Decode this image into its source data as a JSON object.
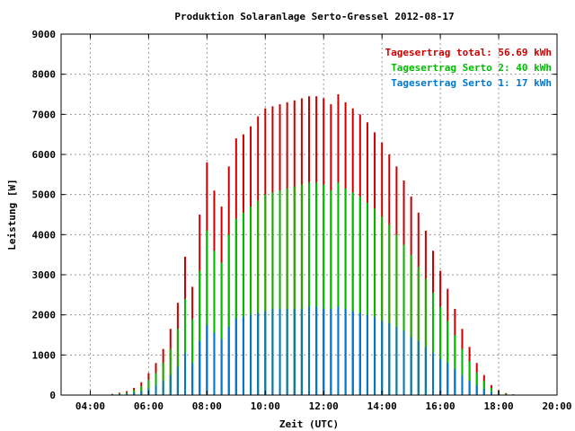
{
  "chart_data": {
    "type": "bar",
    "title": "Produktion Solaranlage Serto-Gressel 2012-08-17",
    "xlabel": "Zeit (UTC)",
    "ylabel": "Leistung [W]",
    "xlim_hours": [
      3,
      20
    ],
    "ylim": [
      0,
      9000
    ],
    "grid": true,
    "legend_position": "top-right",
    "x_ticks": [
      "04:00",
      "06:00",
      "08:00",
      "10:00",
      "12:00",
      "14:00",
      "16:00",
      "18:00",
      "20:00"
    ],
    "y_ticks": [
      "0",
      "1000",
      "2000",
      "3000",
      "4000",
      "5000",
      "6000",
      "7000",
      "8000",
      "9000"
    ],
    "legend": [
      {
        "text": "Tagesertrag total: 56.69 kWh",
        "color": "#cc0000"
      },
      {
        "text": "Tagesertrag Serto 2: 40 kWh",
        "color": "#00bb00"
      },
      {
        "text": "Tagesertrag Serto 1: 17 kWh",
        "color": "#0077cc"
      }
    ],
    "series": [
      {
        "name": "Tagesertrag total: 56.69 kWh",
        "color": "#cc0000",
        "points": [
          [
            "04:45",
            30
          ],
          [
            "05:00",
            60
          ],
          [
            "05:15",
            100
          ],
          [
            "05:30",
            180
          ],
          [
            "05:45",
            320
          ],
          [
            "06:00",
            550
          ],
          [
            "06:15",
            800
          ],
          [
            "06:30",
            1150
          ],
          [
            "06:45",
            1650
          ],
          [
            "07:00",
            2300
          ],
          [
            "07:15",
            3450
          ],
          [
            "07:30",
            2700
          ],
          [
            "07:45",
            4500
          ],
          [
            "08:00",
            5800
          ],
          [
            "08:15",
            5100
          ],
          [
            "08:30",
            4700
          ],
          [
            "08:45",
            5700
          ],
          [
            "09:00",
            6400
          ],
          [
            "09:15",
            6500
          ],
          [
            "09:30",
            6700
          ],
          [
            "09:45",
            6950
          ],
          [
            "10:00",
            7150
          ],
          [
            "10:15",
            7200
          ],
          [
            "10:30",
            7250
          ],
          [
            "10:45",
            7300
          ],
          [
            "11:00",
            7350
          ],
          [
            "11:15",
            7400
          ],
          [
            "11:30",
            7450
          ],
          [
            "11:45",
            7450
          ],
          [
            "12:00",
            7400
          ],
          [
            "12:15",
            7250
          ],
          [
            "12:30",
            7500
          ],
          [
            "12:45",
            7300
          ],
          [
            "13:00",
            7150
          ],
          [
            "13:15",
            7000
          ],
          [
            "13:30",
            6800
          ],
          [
            "13:45",
            6550
          ],
          [
            "14:00",
            6300
          ],
          [
            "14:15",
            6000
          ],
          [
            "14:30",
            5700
          ],
          [
            "14:45",
            5350
          ],
          [
            "15:00",
            4950
          ],
          [
            "15:15",
            4550
          ],
          [
            "15:30",
            4100
          ],
          [
            "15:45",
            3600
          ],
          [
            "16:00",
            3100
          ],
          [
            "16:15",
            2650
          ],
          [
            "16:30",
            2150
          ],
          [
            "16:45",
            1650
          ],
          [
            "17:00",
            1200
          ],
          [
            "17:15",
            800
          ],
          [
            "17:30",
            500
          ],
          [
            "17:45",
            250
          ],
          [
            "18:00",
            120
          ],
          [
            "18:15",
            50
          ],
          [
            "18:30",
            20
          ]
        ]
      },
      {
        "name": "Tagesertrag Serto 2: 40 kWh",
        "color": "#00bb00",
        "points": [
          [
            "04:45",
            20
          ],
          [
            "05:00",
            40
          ],
          [
            "05:15",
            70
          ],
          [
            "05:30",
            130
          ],
          [
            "05:45",
            220
          ],
          [
            "06:00",
            380
          ],
          [
            "06:15",
            550
          ],
          [
            "06:30",
            800
          ],
          [
            "06:45",
            1150
          ],
          [
            "07:00",
            1650
          ],
          [
            "07:15",
            2400
          ],
          [
            "07:30",
            1900
          ],
          [
            "07:45",
            3100
          ],
          [
            "08:00",
            4100
          ],
          [
            "08:15",
            3600
          ],
          [
            "08:30",
            3300
          ],
          [
            "08:45",
            4000
          ],
          [
            "09:00",
            4400
          ],
          [
            "09:15",
            4550
          ],
          [
            "09:30",
            4700
          ],
          [
            "09:45",
            4850
          ],
          [
            "10:00",
            5000
          ],
          [
            "10:15",
            5050
          ],
          [
            "10:30",
            5100
          ],
          [
            "10:45",
            5150
          ],
          [
            "11:00",
            5200
          ],
          [
            "11:15",
            5250
          ],
          [
            "11:30",
            5300
          ],
          [
            "11:45",
            5300
          ],
          [
            "12:00",
            5250
          ],
          [
            "12:15",
            5100
          ],
          [
            "12:30",
            5300
          ],
          [
            "12:45",
            5150
          ],
          [
            "13:00",
            5050
          ],
          [
            "13:15",
            4950
          ],
          [
            "13:30",
            4800
          ],
          [
            "13:45",
            4650
          ],
          [
            "14:00",
            4450
          ],
          [
            "14:15",
            4250
          ],
          [
            "14:30",
            4000
          ],
          [
            "14:45",
            3750
          ],
          [
            "15:00",
            3500
          ],
          [
            "15:15",
            3200
          ],
          [
            "15:30",
            2900
          ],
          [
            "15:45",
            2550
          ],
          [
            "16:00",
            2200
          ],
          [
            "16:15",
            1850
          ],
          [
            "16:30",
            1500
          ],
          [
            "16:45",
            1150
          ],
          [
            "17:00",
            850
          ],
          [
            "17:15",
            560
          ],
          [
            "17:30",
            350
          ],
          [
            "17:45",
            180
          ],
          [
            "18:00",
            80
          ],
          [
            "18:15",
            35
          ],
          [
            "18:30",
            15
          ]
        ]
      },
      {
        "name": "Tagesertrag Serto 1: 17 kWh",
        "color": "#0077cc",
        "points": [
          [
            "04:45",
            10
          ],
          [
            "05:00",
            20
          ],
          [
            "05:15",
            30
          ],
          [
            "05:30",
            55
          ],
          [
            "05:45",
            95
          ],
          [
            "06:00",
            160
          ],
          [
            "06:15",
            240
          ],
          [
            "06:30",
            350
          ],
          [
            "06:45",
            500
          ],
          [
            "07:00",
            700
          ],
          [
            "07:15",
            1050
          ],
          [
            "07:30",
            800
          ],
          [
            "07:45",
            1350
          ],
          [
            "08:00",
            1750
          ],
          [
            "08:15",
            1550
          ],
          [
            "08:30",
            1400
          ],
          [
            "08:45",
            1700
          ],
          [
            "09:00",
            1900
          ],
          [
            "09:15",
            1950
          ],
          [
            "09:30",
            2000
          ],
          [
            "09:45",
            2050
          ],
          [
            "10:00",
            2100
          ],
          [
            "10:15",
            2150
          ],
          [
            "10:30",
            2150
          ],
          [
            "10:45",
            2150
          ],
          [
            "11:00",
            2150
          ],
          [
            "11:15",
            2150
          ],
          [
            "11:30",
            2200
          ],
          [
            "11:45",
            2200
          ],
          [
            "12:00",
            2150
          ],
          [
            "12:15",
            2150
          ],
          [
            "12:30",
            2200
          ],
          [
            "12:45",
            2150
          ],
          [
            "13:00",
            2100
          ],
          [
            "13:15",
            2050
          ],
          [
            "13:30",
            2000
          ],
          [
            "13:45",
            1950
          ],
          [
            "14:00",
            1850
          ],
          [
            "14:15",
            1800
          ],
          [
            "14:30",
            1700
          ],
          [
            "14:45",
            1600
          ],
          [
            "15:00",
            1450
          ],
          [
            "15:15",
            1350
          ],
          [
            "15:30",
            1200
          ],
          [
            "15:45",
            1050
          ],
          [
            "16:00",
            900
          ],
          [
            "16:15",
            800
          ],
          [
            "16:30",
            650
          ],
          [
            "16:45",
            500
          ],
          [
            "17:00",
            350
          ],
          [
            "17:15",
            240
          ],
          [
            "17:30",
            150
          ],
          [
            "17:45",
            70
          ],
          [
            "18:00",
            40
          ],
          [
            "18:15",
            15
          ],
          [
            "18:30",
            5
          ]
        ]
      }
    ]
  }
}
